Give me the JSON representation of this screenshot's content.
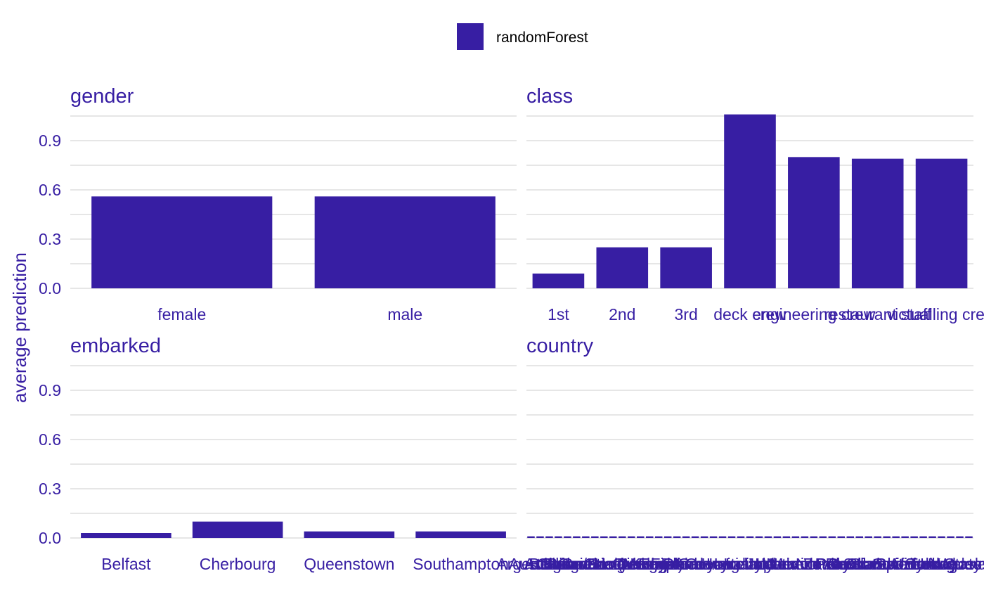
{
  "legend": {
    "label": "randomForest",
    "color": "#371ea3"
  },
  "chart_data": {
    "type": "bar",
    "ylabel": "average prediction",
    "ylim": [
      0,
      1.05
    ],
    "yticks": [
      0.0,
      0.3,
      0.6,
      0.9
    ],
    "ytick_labels": [
      "0.0",
      "0.3",
      "0.6",
      "0.9"
    ],
    "grid": true,
    "legend_position": "top",
    "bar_color": "#371ea3",
    "panels": [
      {
        "title": "gender",
        "categories": [
          "female",
          "male"
        ],
        "values": [
          0.56,
          0.56
        ]
      },
      {
        "title": "class",
        "categories": [
          "1st",
          "2nd",
          "3rd",
          "deck crew",
          "engineering crew",
          "restaurant staff",
          "victualling crew"
        ],
        "values": [
          0.09,
          0.25,
          0.25,
          1.06,
          0.8,
          0.79,
          0.79
        ]
      },
      {
        "title": "embarked",
        "categories": [
          "Belfast",
          "Cherbourg",
          "Queenstown",
          "Southampton"
        ],
        "values": [
          0.03,
          0.1,
          0.04,
          0.04
        ]
      },
      {
        "title": "country",
        "categories": [
          "Argentina",
          "Australia",
          "Austria",
          "Belgium",
          "Bosnia",
          "Bulgaria",
          "Canada",
          "Channel Islands",
          "China/Hong Kong",
          "Croatia",
          "Croatia (Modern)",
          "Cuba",
          "Czechoslovakia",
          "Denmark",
          "Egypt",
          "England",
          "Finland",
          "France",
          "Germany",
          "Greece",
          "Guyana",
          "Haiti",
          "Hungary",
          "India",
          "Ireland",
          "Italy",
          "Japan",
          "Latvia",
          "Lebanon",
          "Mexico",
          "Netherlands",
          "New Zealand",
          "Norway",
          "Peru",
          "Poland",
          "Russia",
          "Scotland",
          "Siam",
          "Slovenia",
          "South Africa",
          "Spain",
          "Sweden",
          "Switzerland",
          "Syria",
          "Turkey",
          "United States",
          "Uruguay",
          "Wales",
          "Yugoslavia"
        ],
        "values": [
          0.01,
          0.01,
          0.01,
          0.01,
          0.01,
          0.01,
          0.01,
          0.01,
          0.01,
          0.01,
          0.01,
          0.01,
          0.01,
          0.01,
          0.01,
          0.01,
          0.01,
          0.01,
          0.01,
          0.01,
          0.01,
          0.01,
          0.01,
          0.01,
          0.01,
          0.01,
          0.01,
          0.01,
          0.01,
          0.01,
          0.01,
          0.01,
          0.01,
          0.01,
          0.01,
          0.01,
          0.01,
          0.01,
          0.01,
          0.01,
          0.01,
          0.01,
          0.01,
          0.01,
          0.01,
          0.01,
          0.01,
          0.01,
          0.01
        ]
      }
    ]
  }
}
